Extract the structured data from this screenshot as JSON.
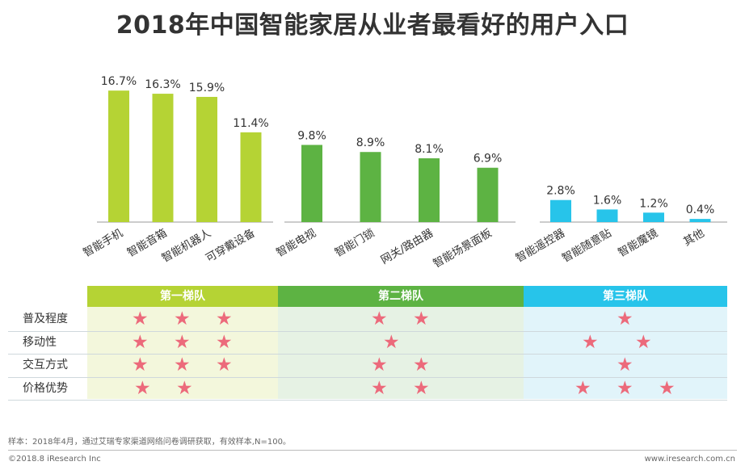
{
  "title": "2018年中国智能家居从业者最看好的用户入口",
  "colors": {
    "tier1": "#b5d334",
    "tier2": "#5db343",
    "tier3": "#27c4ea",
    "tier1_bg": "#f3f7dc",
    "tier2_bg": "#e6f2e4",
    "tier3_bg": "#e1f4fa",
    "star": "#ec6a7b"
  },
  "chart_data": {
    "type": "bar",
    "title": "2018年中国智能家居从业者最看好的用户入口",
    "value_suffix": "%",
    "groups": [
      {
        "name": "第一梯队",
        "categories": [
          "智能手机",
          "智能音箱",
          "智能机器人",
          "可穿戴设备"
        ],
        "values": [
          16.7,
          16.3,
          15.9,
          11.4
        ]
      },
      {
        "name": "第二梯队",
        "categories": [
          "智能电视",
          "智能门锁",
          "网关/路由器",
          "智能场景面板"
        ],
        "values": [
          9.8,
          8.9,
          8.1,
          6.9
        ]
      },
      {
        "name": "第三梯队",
        "categories": [
          "智能遥控器",
          "智能随意贴",
          "智能魔镜",
          "其他"
        ],
        "values": [
          2.8,
          1.6,
          1.2,
          0.4
        ]
      }
    ],
    "ylim": [
      0,
      17
    ]
  },
  "table": {
    "tiers": [
      "第一梯队",
      "第二梯队",
      "第三梯队"
    ],
    "rows": [
      {
        "label": "普及程度",
        "stars": [
          3,
          2,
          1
        ]
      },
      {
        "label": "移动性",
        "stars": [
          3,
          1,
          2
        ]
      },
      {
        "label": "交互方式",
        "stars": [
          3,
          2,
          1
        ]
      },
      {
        "label": "价格优势",
        "stars": [
          2,
          2,
          3
        ]
      }
    ]
  },
  "star_glyph": "★",
  "footnote": "样本：2018年4月，通过艾瑞专家渠道网络问卷调研获取，有效样本,N=100。",
  "copyright": "©2018.8 iResearch Inc",
  "website": "www.iresearch.com.cn"
}
